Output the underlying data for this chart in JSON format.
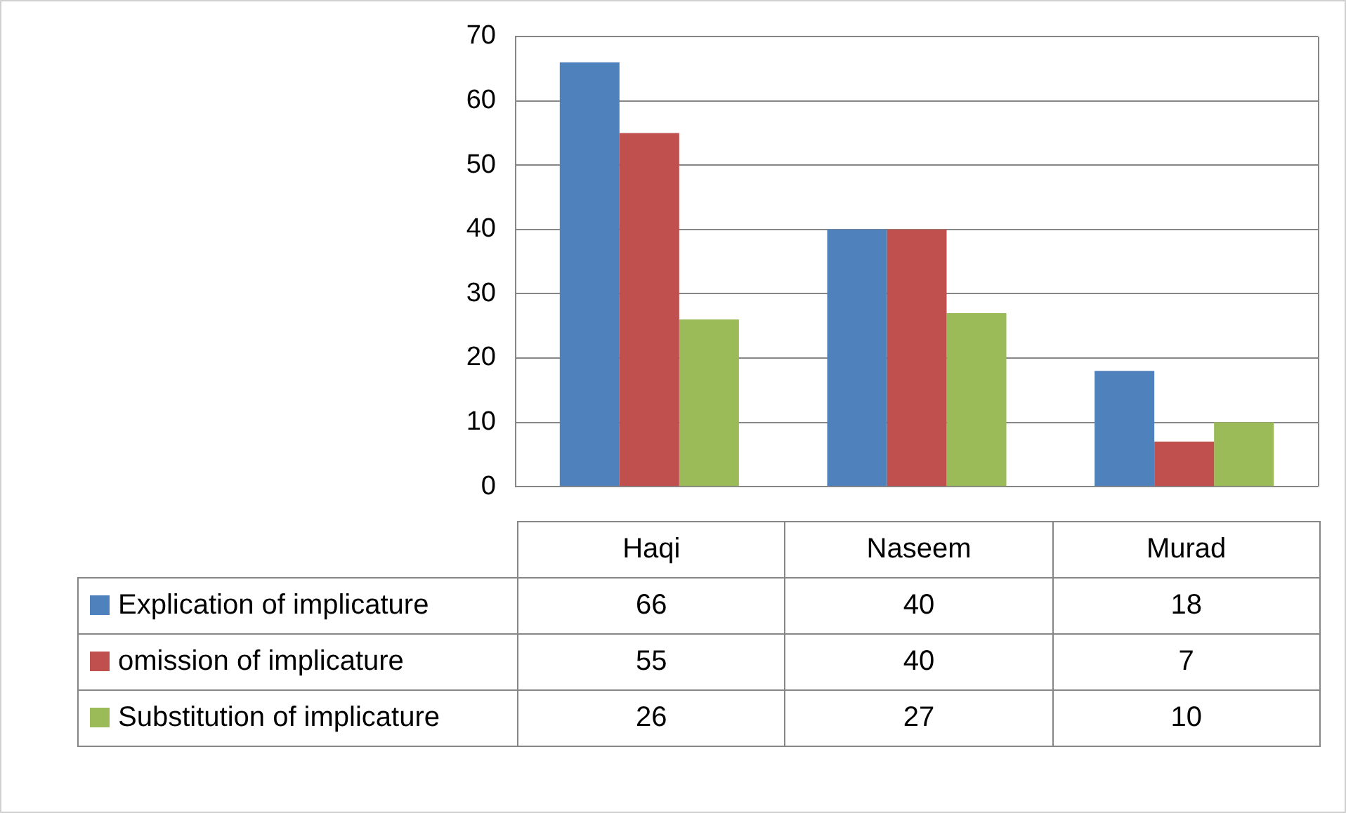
{
  "chart_data": {
    "type": "bar",
    "categories": [
      "Haqi",
      "Naseem",
      "Murad"
    ],
    "series": [
      {
        "name": "Explication of implicature",
        "color": "#4f81bd",
        "values": [
          66,
          40,
          18
        ]
      },
      {
        "name": "omission of implicature",
        "color": "#c0504d",
        "values": [
          55,
          40,
          7
        ]
      },
      {
        "name": "Substitution of implicature",
        "color": "#9bbb59",
        "values": [
          26,
          27,
          10
        ]
      }
    ],
    "ylim": [
      0,
      70
    ],
    "yticks": [
      0,
      10,
      20,
      30,
      40,
      50,
      60,
      70
    ],
    "grid": "y",
    "legend": "bottom",
    "data_labels": true
  }
}
